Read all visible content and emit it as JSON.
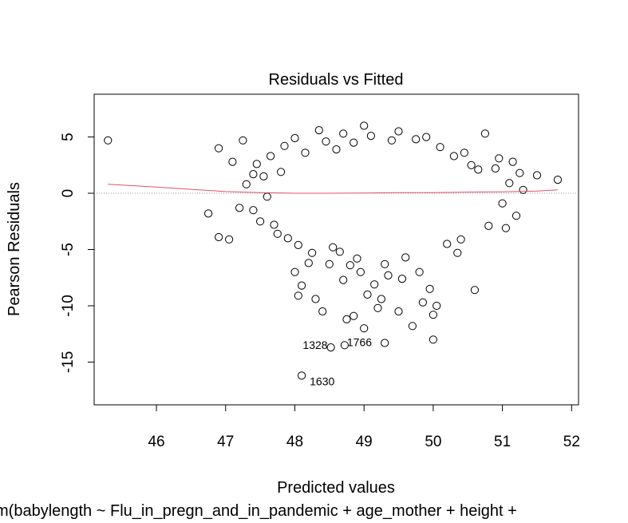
{
  "chart_data": {
    "type": "scatter",
    "title": "Residuals vs Fitted",
    "xlabel": "Predicted values",
    "ylabel": "Pearson Residuals",
    "subtitle": "m(babylength ~ Flu_in_pregn_and_in_pandemic + age_mother + height +",
    "xlim": [
      45.1,
      52.1
    ],
    "ylim": [
      -18.8,
      8.8
    ],
    "xticks": [
      46,
      47,
      48,
      49,
      50,
      51,
      52
    ],
    "yticks": [
      -15,
      -10,
      -5,
      0,
      5
    ],
    "grid": false,
    "reference_line_y": 0,
    "highlighted_points": [
      {
        "label": "1328",
        "x": 48.52,
        "y": -13.7
      },
      {
        "label": "1766",
        "x": 48.72,
        "y": -13.5
      },
      {
        "label": "1630",
        "x": 48.1,
        "y": -16.2
      }
    ],
    "smoother": [
      {
        "x": 45.3,
        "y": 0.8
      },
      {
        "x": 46.0,
        "y": 0.55
      },
      {
        "x": 46.5,
        "y": 0.35
      },
      {
        "x": 47.0,
        "y": 0.15
      },
      {
        "x": 47.5,
        "y": 0.05
      },
      {
        "x": 48.0,
        "y": 0.0
      },
      {
        "x": 48.5,
        "y": 0.0
      },
      {
        "x": 49.0,
        "y": 0.02
      },
      {
        "x": 49.5,
        "y": 0.05
      },
      {
        "x": 50.0,
        "y": 0.05
      },
      {
        "x": 50.5,
        "y": 0.1
      },
      {
        "x": 51.0,
        "y": 0.12
      },
      {
        "x": 51.5,
        "y": 0.2
      },
      {
        "x": 51.8,
        "y": 0.3
      }
    ],
    "points": [
      {
        "x": 45.3,
        "y": 4.7
      },
      {
        "x": 46.75,
        "y": -1.8
      },
      {
        "x": 46.9,
        "y": 4.0
      },
      {
        "x": 46.9,
        "y": -3.9
      },
      {
        "x": 47.05,
        "y": -4.1
      },
      {
        "x": 47.1,
        "y": 2.8
      },
      {
        "x": 47.2,
        "y": -1.3
      },
      {
        "x": 47.25,
        "y": 4.7
      },
      {
        "x": 47.3,
        "y": 0.8
      },
      {
        "x": 47.4,
        "y": 1.7
      },
      {
        "x": 47.4,
        "y": -1.5
      },
      {
        "x": 47.45,
        "y": 2.6
      },
      {
        "x": 47.5,
        "y": -2.5
      },
      {
        "x": 47.55,
        "y": 1.5
      },
      {
        "x": 47.6,
        "y": -0.3
      },
      {
        "x": 47.65,
        "y": 3.3
      },
      {
        "x": 47.7,
        "y": -2.8
      },
      {
        "x": 47.75,
        "y": -3.6
      },
      {
        "x": 47.8,
        "y": 1.9
      },
      {
        "x": 47.85,
        "y": 4.2
      },
      {
        "x": 47.9,
        "y": -4.0
      },
      {
        "x": 48.0,
        "y": -7.0
      },
      {
        "x": 48.0,
        "y": 4.9
      },
      {
        "x": 48.05,
        "y": -9.1
      },
      {
        "x": 48.05,
        "y": -4.6
      },
      {
        "x": 48.1,
        "y": -8.2
      },
      {
        "x": 48.15,
        "y": 3.6
      },
      {
        "x": 48.2,
        "y": -6.2
      },
      {
        "x": 48.25,
        "y": -5.3
      },
      {
        "x": 48.3,
        "y": -9.4
      },
      {
        "x": 48.35,
        "y": 5.6
      },
      {
        "x": 48.4,
        "y": -10.5
      },
      {
        "x": 48.45,
        "y": 4.6
      },
      {
        "x": 48.5,
        "y": -6.3
      },
      {
        "x": 48.55,
        "y": -4.8
      },
      {
        "x": 48.6,
        "y": 3.9
      },
      {
        "x": 48.65,
        "y": -5.2
      },
      {
        "x": 48.7,
        "y": 5.3
      },
      {
        "x": 48.7,
        "y": -7.7
      },
      {
        "x": 48.75,
        "y": -11.2
      },
      {
        "x": 48.8,
        "y": -6.4
      },
      {
        "x": 48.85,
        "y": -10.9
      },
      {
        "x": 48.85,
        "y": 4.5
      },
      {
        "x": 48.9,
        "y": -5.8
      },
      {
        "x": 48.95,
        "y": -7.0
      },
      {
        "x": 49.0,
        "y": -12.0
      },
      {
        "x": 49.0,
        "y": 6.0
      },
      {
        "x": 49.05,
        "y": -9.0
      },
      {
        "x": 49.1,
        "y": 5.1
      },
      {
        "x": 49.15,
        "y": -8.1
      },
      {
        "x": 49.2,
        "y": -10.2
      },
      {
        "x": 49.25,
        "y": -9.4
      },
      {
        "x": 49.3,
        "y": -13.3
      },
      {
        "x": 49.3,
        "y": -6.3
      },
      {
        "x": 49.35,
        "y": -7.3
      },
      {
        "x": 49.4,
        "y": 4.7
      },
      {
        "x": 49.5,
        "y": -10.5
      },
      {
        "x": 49.5,
        "y": 5.5
      },
      {
        "x": 49.55,
        "y": -7.6
      },
      {
        "x": 49.6,
        "y": -5.7
      },
      {
        "x": 49.7,
        "y": -11.8
      },
      {
        "x": 49.75,
        "y": 4.8
      },
      {
        "x": 49.8,
        "y": -7.0
      },
      {
        "x": 49.85,
        "y": -9.7
      },
      {
        "x": 49.9,
        "y": 5.0
      },
      {
        "x": 49.95,
        "y": -8.5
      },
      {
        "x": 50.0,
        "y": -13.0
      },
      {
        "x": 50.0,
        "y": -10.8
      },
      {
        "x": 50.05,
        "y": -10.0
      },
      {
        "x": 50.1,
        "y": 4.1
      },
      {
        "x": 50.2,
        "y": -4.5
      },
      {
        "x": 50.3,
        "y": 3.3
      },
      {
        "x": 50.35,
        "y": -5.3
      },
      {
        "x": 50.4,
        "y": -4.1
      },
      {
        "x": 50.45,
        "y": 3.6
      },
      {
        "x": 50.55,
        "y": 2.5
      },
      {
        "x": 50.6,
        "y": -8.6
      },
      {
        "x": 50.65,
        "y": 2.1
      },
      {
        "x": 50.75,
        "y": 5.3
      },
      {
        "x": 50.8,
        "y": -2.9
      },
      {
        "x": 50.9,
        "y": 2.2
      },
      {
        "x": 50.95,
        "y": 3.1
      },
      {
        "x": 51.0,
        "y": -0.9
      },
      {
        "x": 51.05,
        "y": -3.1
      },
      {
        "x": 51.1,
        "y": 0.9
      },
      {
        "x": 51.15,
        "y": 2.8
      },
      {
        "x": 51.2,
        "y": -2.0
      },
      {
        "x": 51.25,
        "y": 1.8
      },
      {
        "x": 51.3,
        "y": 0.3
      },
      {
        "x": 51.5,
        "y": 1.6
      },
      {
        "x": 51.8,
        "y": 1.2
      },
      {
        "x": 48.52,
        "y": -13.7
      },
      {
        "x": 48.72,
        "y": -13.5
      },
      {
        "x": 48.1,
        "y": -16.2
      }
    ]
  }
}
